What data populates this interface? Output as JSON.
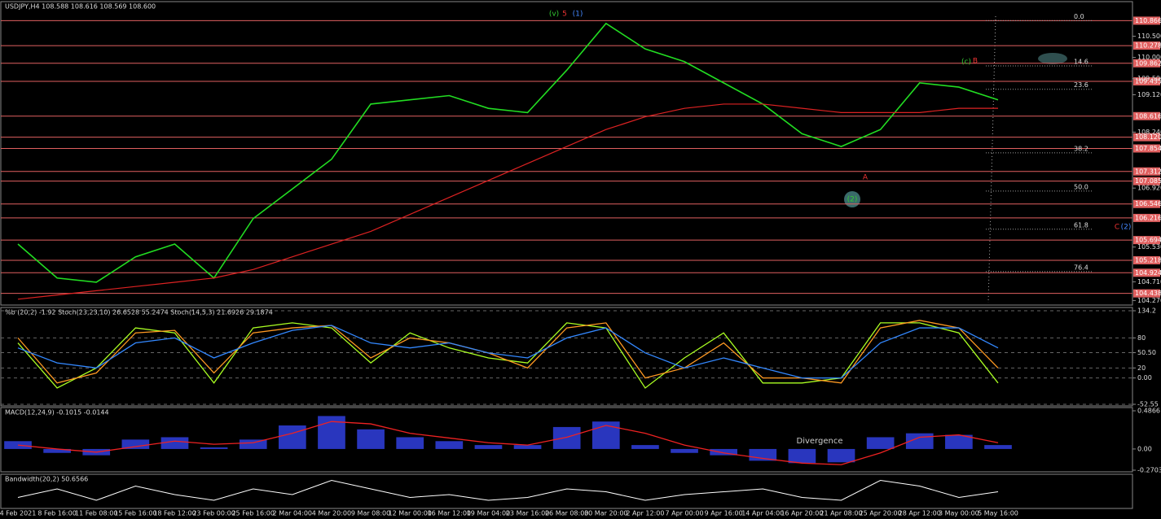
{
  "header": "USDJPY,H4 108.588 108.616 108.569 108.600",
  "chart_data": {
    "type": "line",
    "categories": [
      "4 Feb 2021",
      "8 Feb 16:00",
      "11 Feb 08:00",
      "15 Feb 16:00",
      "18 Feb 12:00",
      "23 Feb 00:00",
      "25 Feb 16:00",
      "2 Mar 04:00",
      "4 Mar 20:00",
      "9 Mar 08:00",
      "12 Mar 00:00",
      "16 Mar 12:00",
      "19 Mar 04:00",
      "23 Mar 16:00",
      "26 Mar 08:00",
      "30 Mar 20:00",
      "2 Apr 12:00",
      "7 Apr 00:00",
      "9 Apr 16:00",
      "14 Apr 04:00",
      "16 Apr 20:00",
      "21 Apr 08:00",
      "25 Apr 20:00",
      "28 Apr 12:00",
      "3 May 00:00",
      "5 May 16:00"
    ],
    "series": [
      {
        "color": "#22dd22",
        "values": [
          105.6,
          104.8,
          104.7,
          105.3,
          105.6,
          104.8,
          106.2,
          106.9,
          107.6,
          108.9,
          109.0,
          109.1,
          108.8,
          108.7,
          109.7,
          110.8,
          110.2,
          109.9,
          109.4,
          108.9,
          108.2,
          107.9,
          108.3,
          109.4,
          109.3,
          109.0
        ]
      },
      {
        "color": "#dd2222",
        "values": [
          104.3,
          104.4,
          104.5,
          104.6,
          104.7,
          104.8,
          105.0,
          105.3,
          105.6,
          105.9,
          106.3,
          106.7,
          107.1,
          107.5,
          107.9,
          108.3,
          108.6,
          108.8,
          108.9,
          108.9,
          108.8,
          108.7,
          108.7,
          108.7,
          108.8,
          108.8
        ]
      }
    ],
    "ylim": [
      104.22,
      111.2
    ],
    "yticks": [
      {
        "value": 110.5,
        "label": "110.500"
      },
      {
        "value": 110.0,
        "label": "110.000"
      },
      {
        "value": 109.5,
        "label": "109.500"
      },
      {
        "value": 109.12,
        "label": "109.120"
      },
      {
        "value": 108.24,
        "label": "108.240"
      },
      {
        "value": 106.92,
        "label": "106.920"
      },
      {
        "value": 105.53,
        "label": "105.530"
      },
      {
        "value": 104.71,
        "label": "104.710"
      },
      {
        "value": 104.27,
        "label": "104.270"
      }
    ],
    "levels": [
      {
        "value": 110.866,
        "label": "110.866"
      },
      {
        "value": 110.278,
        "label": "110.278"
      },
      {
        "value": 109.862,
        "label": "109.862"
      },
      {
        "value": 109.435,
        "label": "109.435"
      },
      {
        "value": 108.616,
        "label": "108.616"
      },
      {
        "value": 108.12,
        "label": "108.120"
      },
      {
        "value": 107.854,
        "label": "107.854"
      },
      {
        "value": 107.312,
        "label": "107.312"
      },
      {
        "value": 107.085,
        "label": "107.085"
      },
      {
        "value": 106.546,
        "label": "106.546"
      },
      {
        "value": 106.216,
        "label": "106.216"
      },
      {
        "value": 105.694,
        "label": "105.694"
      },
      {
        "value": 105.218,
        "label": "105.218"
      },
      {
        "value": 104.924,
        "label": "104.924"
      },
      {
        "value": 104.438,
        "label": "104.438"
      }
    ],
    "level_color": "#e06060",
    "fib_levels": [
      {
        "value": 110.866,
        "label": "0.0"
      },
      {
        "value": 109.8,
        "label": "14.6"
      },
      {
        "value": 109.25,
        "label": "23.6"
      },
      {
        "value": 107.75,
        "label": "38.2"
      },
      {
        "value": 106.85,
        "label": "50.0"
      },
      {
        "value": 105.95,
        "label": "61.8"
      },
      {
        "value": 104.95,
        "label": "76.4"
      }
    ],
    "annotations": [
      "(v)",
      "5",
      "(1)",
      "(c)",
      "B",
      "(2)",
      "A",
      "C",
      "(2)",
      "Divergence"
    ],
    "stoch": {
      "title": "%b (20,2) -1.92 Stoch(23,23,10) 26.6528 55.2474 Stoch(14,5,3) 21.6926 29.1874",
      "ylim": [
        -52.55,
        134.2
      ],
      "yticks": [
        134.2,
        80,
        {
          "value": 50.5,
          "label": "50.50"
        },
        {
          "value": 0,
          "label": "0.00"
        },
        20,
        -52.55
      ],
      "series": [
        {
          "color": "#aaff22",
          "values": [
            70,
            -20,
            20,
            100,
            90,
            -10,
            100,
            110,
            100,
            30,
            90,
            60,
            40,
            30,
            110,
            100,
            -20,
            40,
            90,
            -10,
            -10,
            0,
            110,
            110,
            90,
            -10
          ]
        },
        {
          "color": "#ff9922",
          "values": [
            80,
            -10,
            10,
            90,
            95,
            10,
            90,
            100,
            105,
            40,
            80,
            70,
            50,
            20,
            100,
            110,
            0,
            20,
            70,
            0,
            0,
            -10,
            100,
            115,
            100,
            20
          ]
        },
        {
          "color": "#3388ff",
          "values": [
            60,
            30,
            20,
            70,
            80,
            40,
            70,
            95,
            105,
            70,
            60,
            70,
            50,
            40,
            80,
            100,
            50,
            20,
            40,
            20,
            0,
            0,
            70,
            100,
            100,
            60
          ]
        }
      ]
    },
    "macd": {
      "title": "MACD(12,24,9) -0.1015 -0.0144",
      "ylim": [
        -0.2703,
        0.4866
      ],
      "yticks": [
        0.4866,
        {
          "value": 0,
          "label": "0.00"
        },
        -0.2703
      ],
      "histogram": {
        "color": "#3344ee",
        "values": [
          0.1,
          -0.05,
          -0.08,
          0.12,
          0.15,
          0.02,
          0.12,
          0.3,
          0.42,
          0.25,
          0.15,
          0.1,
          0.05,
          0.05,
          0.28,
          0.35,
          0.05,
          -0.05,
          -0.08,
          -0.15,
          -0.18,
          -0.17,
          0.15,
          0.2,
          0.18,
          0.05
        ]
      },
      "signal": {
        "color": "#ee2222",
        "values": [
          0.05,
          0.0,
          -0.04,
          0.03,
          0.1,
          0.06,
          0.08,
          0.2,
          0.35,
          0.32,
          0.2,
          0.14,
          0.08,
          0.05,
          0.15,
          0.3,
          0.2,
          0.05,
          -0.05,
          -0.12,
          -0.18,
          -0.2,
          -0.05,
          0.15,
          0.18,
          0.08
        ]
      }
    },
    "bandwidth": {
      "title": "Bandwidth(20,2) 50.6566",
      "ylim": [
        0,
        100
      ],
      "color": "#ffffff",
      "values": [
        30,
        60,
        20,
        70,
        40,
        20,
        60,
        40,
        90,
        60,
        30,
        40,
        20,
        30,
        60,
        50,
        20,
        40,
        50,
        60,
        30,
        20,
        90,
        70,
        30,
        50
      ]
    }
  }
}
